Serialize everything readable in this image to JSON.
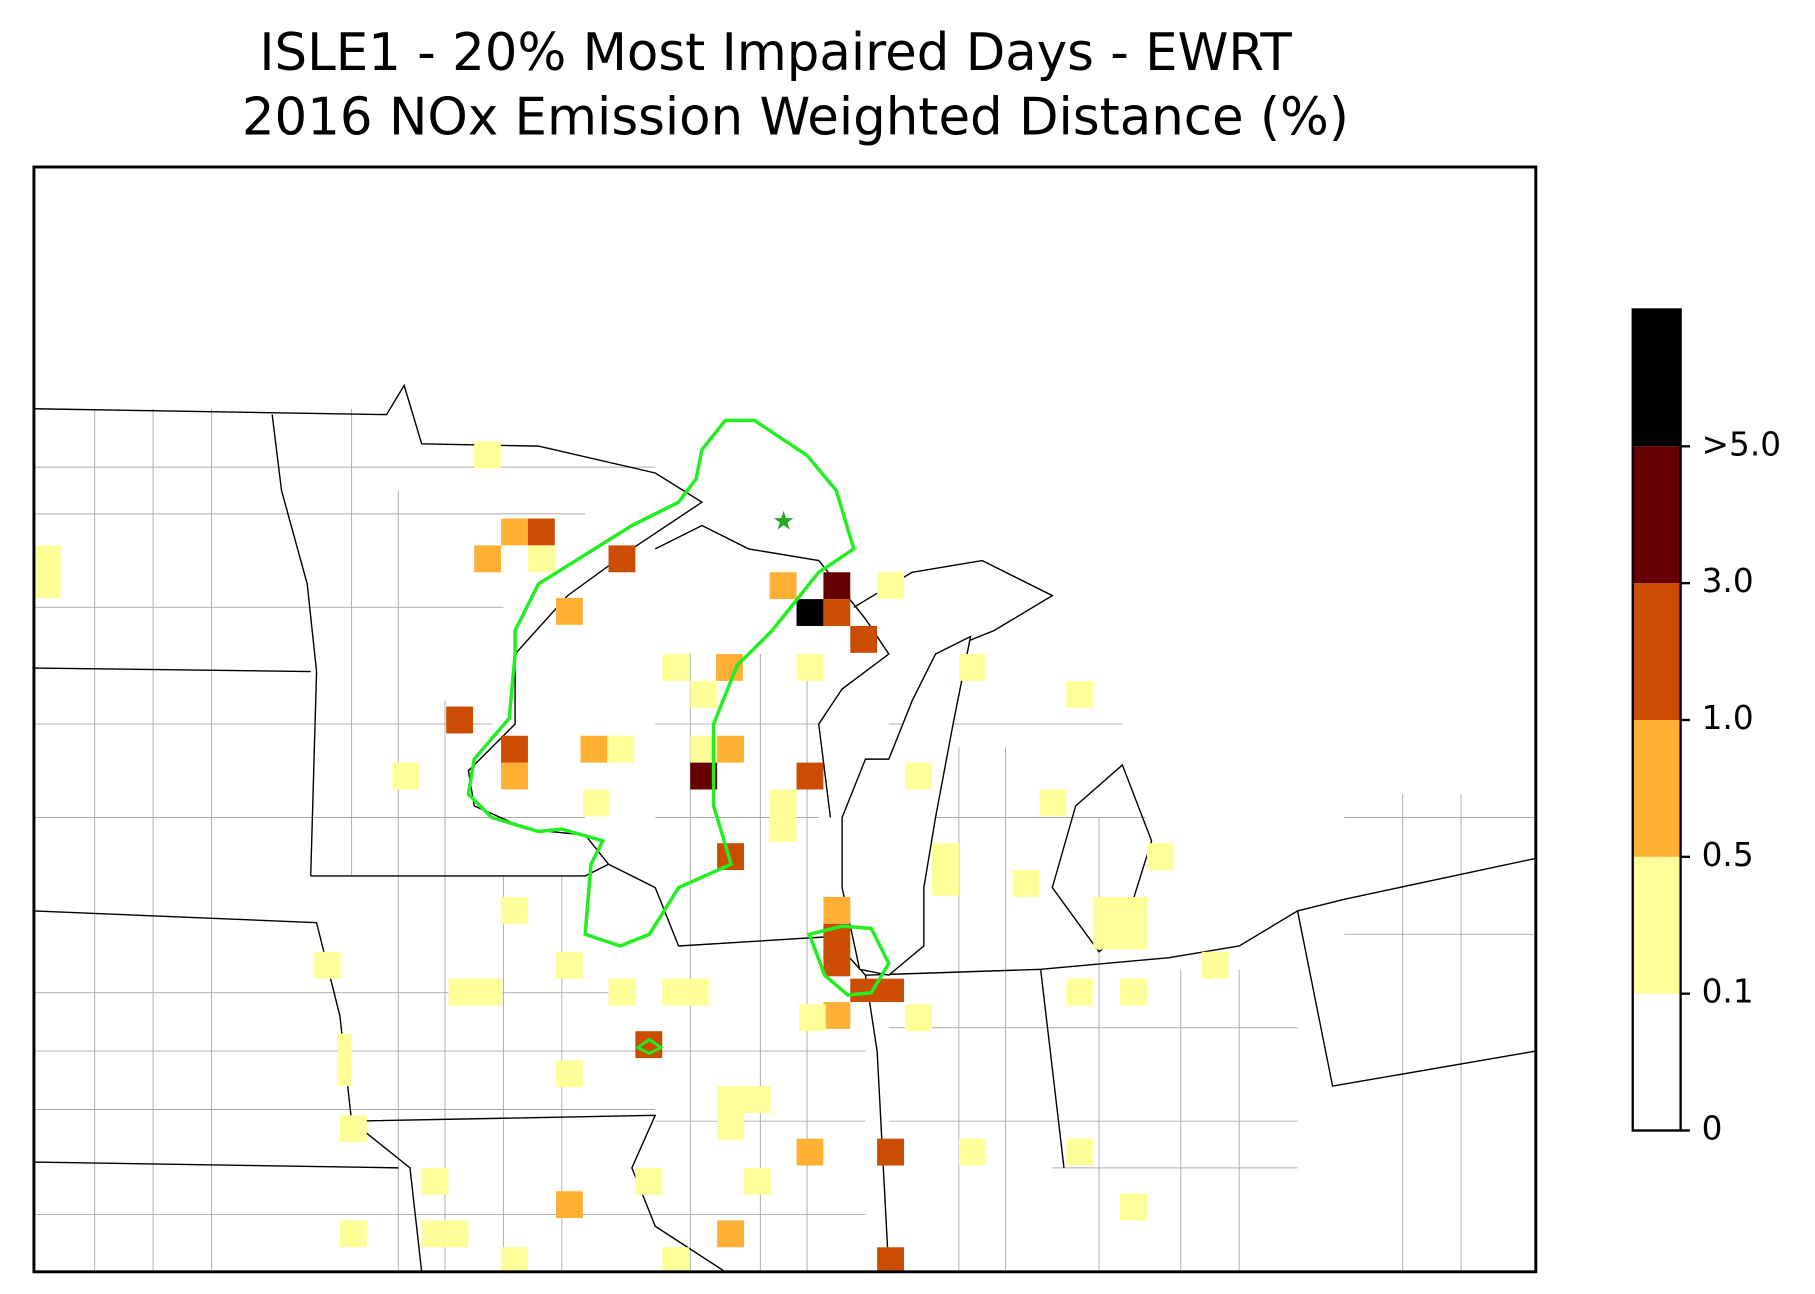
{
  "title": "ISLE1 - 20% Most Impaired Days - EWRT",
  "subtitle": "2016 NOx Emission Weighted Distance (%)",
  "colorbar": {
    "colors": [
      "#ffffff",
      "#ffff99",
      "#fdb034",
      "#cc4c02",
      "#660000",
      "#000000"
    ],
    "ticks": [
      0,
      0.1,
      0.5,
      {
        "value": 1.0,
        "label": "1.0"
      },
      {
        "value": 3.0,
        "label": "3.0"
      },
      {
        "value": 5.0,
        "label": ">5.0"
      }
    ]
  }
}
